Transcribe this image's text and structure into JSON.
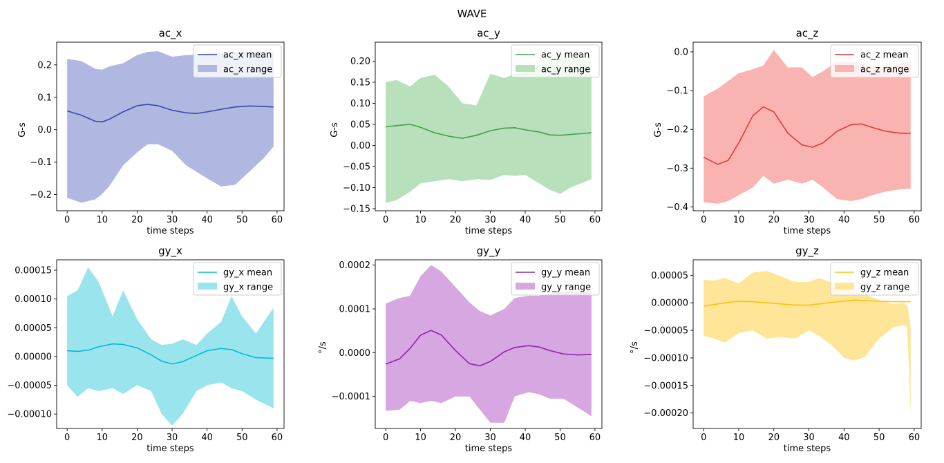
{
  "figure_title": "WAVE",
  "chart_data": [
    {
      "type": "area",
      "title": "ac_x",
      "xlabel": "time steps",
      "ylabel": "G-s",
      "xlim": [
        -3,
        62
      ],
      "ylim": [
        -0.25,
        0.27
      ],
      "xticks": [
        0,
        10,
        20,
        30,
        40,
        50,
        60
      ],
      "xtick_labels": [
        "0",
        "10",
        "20",
        "30",
        "40",
        "50",
        "60"
      ],
      "yticks": [
        -0.2,
        -0.1,
        0.0,
        0.1,
        0.2
      ],
      "ytick_labels": [
        "−0.2",
        "−0.1",
        "0.0",
        "0.1",
        "0.2"
      ],
      "legend": {
        "position": "top-right",
        "mean_label": "ac_x mean",
        "range_label": "ac_x range"
      },
      "line_color": "#3949ab",
      "fill_color": "#b0b7e0",
      "x": [
        0,
        4,
        8,
        10,
        12,
        16,
        20,
        23,
        26,
        30,
        34,
        37,
        40,
        44,
        48,
        52,
        56,
        59
      ],
      "mean": [
        0.058,
        0.045,
        0.026,
        0.024,
        0.032,
        0.055,
        0.074,
        0.078,
        0.074,
        0.06,
        0.052,
        0.05,
        0.055,
        0.063,
        0.07,
        0.073,
        0.072,
        0.07
      ],
      "upper": [
        0.218,
        0.212,
        0.188,
        0.185,
        0.195,
        0.205,
        0.23,
        0.24,
        0.242,
        0.225,
        0.23,
        0.232,
        0.235,
        0.237,
        0.24,
        0.24,
        0.24,
        0.24
      ],
      "lower": [
        -0.21,
        -0.225,
        -0.215,
        -0.198,
        -0.175,
        -0.11,
        -0.07,
        -0.045,
        -0.045,
        -0.065,
        -0.11,
        -0.13,
        -0.15,
        -0.175,
        -0.17,
        -0.13,
        -0.09,
        -0.052
      ]
    },
    {
      "type": "area",
      "title": "ac_y",
      "xlabel": "time steps",
      "ylabel": "G-s",
      "xlim": [
        -3,
        62
      ],
      "ylim": [
        -0.155,
        0.245
      ],
      "xticks": [
        0,
        10,
        20,
        30,
        40,
        50,
        60
      ],
      "xtick_labels": [
        "0",
        "10",
        "20",
        "30",
        "40",
        "50",
        "60"
      ],
      "yticks": [
        -0.15,
        -0.1,
        -0.05,
        0.0,
        0.05,
        0.1,
        0.15,
        0.2
      ],
      "ytick_labels": [
        "−0.15",
        "−0.10",
        "−0.05",
        "0.00",
        "0.05",
        "0.10",
        "0.15",
        "0.20"
      ],
      "legend": {
        "position": "top-right",
        "mean_label": "ac_y mean",
        "range_label": "ac_y range"
      },
      "line_color": "#43a047",
      "fill_color": "#b8e0bb",
      "x": [
        0,
        3,
        7,
        10,
        14,
        18,
        22,
        26,
        30,
        34,
        37,
        40,
        44,
        47,
        50,
        53,
        56,
        59
      ],
      "mean": [
        0.044,
        0.047,
        0.05,
        0.043,
        0.03,
        0.022,
        0.017,
        0.024,
        0.035,
        0.041,
        0.042,
        0.037,
        0.032,
        0.025,
        0.024,
        0.026,
        0.028,
        0.03
      ],
      "upper": [
        0.15,
        0.155,
        0.14,
        0.16,
        0.168,
        0.14,
        0.1,
        0.095,
        0.17,
        0.16,
        0.17,
        0.175,
        0.19,
        0.2,
        0.205,
        0.21,
        0.205,
        0.2
      ],
      "lower": [
        -0.137,
        -0.13,
        -0.11,
        -0.09,
        -0.085,
        -0.08,
        -0.085,
        -0.08,
        -0.082,
        -0.07,
        -0.072,
        -0.07,
        -0.09,
        -0.105,
        -0.115,
        -0.1,
        -0.09,
        -0.08
      ]
    },
    {
      "type": "area",
      "title": "ac_z",
      "xlabel": "time steps",
      "ylabel": "G-s",
      "xlim": [
        -3,
        62
      ],
      "ylim": [
        -0.41,
        0.025
      ],
      "xticks": [
        0,
        10,
        20,
        30,
        40,
        50,
        60
      ],
      "xtick_labels": [
        "0",
        "10",
        "20",
        "30",
        "40",
        "50",
        "60"
      ],
      "yticks": [
        -0.4,
        -0.3,
        -0.2,
        -0.1,
        0.0
      ],
      "ytick_labels": [
        "−0.4",
        "−0.3",
        "−0.2",
        "−0.1",
        "0.0"
      ],
      "legend": {
        "position": "top-right",
        "mean_label": "ac_z mean",
        "range_label": "ac_z range"
      },
      "line_color": "#e53935",
      "fill_color": "#f9b4b1",
      "x": [
        0,
        4,
        7,
        10,
        14,
        17,
        20,
        24,
        28,
        31,
        34,
        38,
        42,
        45,
        48,
        52,
        56,
        59
      ],
      "mean": [
        -0.272,
        -0.29,
        -0.28,
        -0.235,
        -0.165,
        -0.142,
        -0.155,
        -0.21,
        -0.24,
        -0.246,
        -0.235,
        -0.205,
        -0.188,
        -0.186,
        -0.195,
        -0.205,
        -0.21,
        -0.21
      ],
      "upper": [
        -0.115,
        -0.095,
        -0.075,
        -0.055,
        -0.045,
        -0.035,
        0.005,
        -0.04,
        -0.04,
        -0.065,
        -0.05,
        -0.025,
        -0.025,
        -0.03,
        -0.035,
        -0.04,
        -0.03,
        -0.025
      ],
      "lower": [
        -0.388,
        -0.392,
        -0.385,
        -0.37,
        -0.35,
        -0.32,
        -0.34,
        -0.33,
        -0.34,
        -0.33,
        -0.35,
        -0.38,
        -0.385,
        -0.38,
        -0.37,
        -0.36,
        -0.355,
        -0.353
      ]
    },
    {
      "type": "area",
      "title": "gy_x",
      "xlabel": "time steps",
      "ylabel": "",
      "xlim": [
        -3,
        62
      ],
      "ylim": [
        -0.000125,
        0.000168
      ],
      "xticks": [
        0,
        10,
        20,
        30,
        40,
        50,
        60
      ],
      "xtick_labels": [
        "0",
        "10",
        "20",
        "30",
        "40",
        "50",
        "60"
      ],
      "yticks": [
        -0.0001,
        -5e-05,
        0.0,
        5e-05,
        0.0001,
        0.00015
      ],
      "ytick_labels": [
        "−0.00010",
        "−0.00005",
        "0.00000",
        "0.00005",
        "0.00010",
        "0.00015"
      ],
      "legend": {
        "position": "top-right",
        "mean_label": "gy_x mean",
        "range_label": "gy_x range"
      },
      "line_color": "#00bcd4",
      "fill_color": "#9ae4ed",
      "x": [
        0,
        3,
        6,
        9,
        13,
        16,
        20,
        24,
        27,
        30,
        33,
        37,
        40,
        44,
        47,
        50,
        54,
        59
      ],
      "mean": [
        1e-05,
        9e-06,
        1.1e-05,
        1.7e-05,
        2.2e-05,
        2.1e-05,
        1.5e-05,
        3e-06,
        -8e-06,
        -1.3e-05,
        -9e-06,
        2e-06,
        1e-05,
        1.4e-05,
        1.2e-05,
        5e-06,
        -2e-06,
        -3e-06
      ],
      "upper": [
        0.000105,
        0.000115,
        0.000155,
        0.00013,
        7e-05,
        0.000115,
        6.5e-05,
        3e-05,
        2e-05,
        2.2e-05,
        3e-05,
        2e-05,
        4e-05,
        6e-05,
        0.000105,
        7e-05,
        4e-05,
        8.5e-05
      ],
      "lower": [
        -5e-05,
        -7e-05,
        -5.5e-05,
        -6e-05,
        -5.5e-05,
        -6.5e-05,
        -5e-05,
        -6e-05,
        -0.0001,
        -0.00012,
        -0.0001,
        -6e-05,
        -5e-05,
        -4.5e-05,
        -5.5e-05,
        -6e-05,
        -7.5e-05,
        -9e-05
      ]
    },
    {
      "type": "area",
      "title": "gy_y",
      "xlabel": "time steps",
      "ylabel": "°/s",
      "xlim": [
        -3,
        62
      ],
      "ylim": [
        -0.000173,
        0.000212
      ],
      "xticks": [
        0,
        10,
        20,
        30,
        40,
        50,
        60
      ],
      "xtick_labels": [
        "0",
        "10",
        "20",
        "30",
        "40",
        "50",
        "60"
      ],
      "yticks": [
        -0.0001,
        0.0,
        0.0001,
        0.0002
      ],
      "ytick_labels": [
        "−0.0001",
        "0.0000",
        "0.0001",
        "0.0002"
      ],
      "legend": {
        "position": "top-right",
        "mean_label": "gy_y mean",
        "range_label": "gy_y range"
      },
      "line_color": "#8e24aa",
      "fill_color": "#d6a7e0",
      "x": [
        0,
        4,
        7,
        10,
        13,
        16,
        20,
        24,
        27,
        30,
        34,
        37,
        41,
        44,
        47,
        51,
        55,
        59
      ],
      "mean": [
        -2.6e-05,
        -1.4e-05,
        1e-05,
        4e-05,
        5.1e-05,
        4e-05,
        5e-06,
        -2.5e-05,
        -3e-05,
        -2e-05,
        2e-06,
        1.2e-05,
        1.6e-05,
        1.3e-05,
        5e-06,
        -3e-06,
        -5e-06,
        -4e-06
      ],
      "upper": [
        0.000112,
        0.000125,
        0.00013,
        0.000175,
        0.0002,
        0.000185,
        0.00015,
        0.000115,
        9.5e-05,
        8.5e-05,
        0.0001,
        0.000125,
        0.00013,
        0.00013,
        0.000135,
        0.00014,
        0.00014,
        0.00014
      ],
      "lower": [
        -0.000133,
        -0.00013,
        -0.00011,
        -0.000115,
        -0.00011,
        -0.000115,
        -0.0001,
        -0.0001,
        -0.00013,
        -0.00016,
        -0.00016,
        -0.0001,
        -9e-05,
        -9.5e-05,
        -0.000105,
        -0.000105,
        -0.000125,
        -0.000145
      ]
    },
    {
      "type": "area",
      "title": "gy_z",
      "xlabel": "time steps",
      "ylabel": "°/s",
      "xlim": [
        -3,
        62
      ],
      "ylim": [
        -0.000228,
        7.8e-05
      ],
      "xticks": [
        0,
        10,
        20,
        30,
        40,
        50,
        60
      ],
      "xtick_labels": [
        "0",
        "10",
        "20",
        "30",
        "40",
        "50",
        "60"
      ],
      "yticks": [
        -0.0002,
        -0.00015,
        -0.0001,
        -5e-05,
        0.0,
        5e-05
      ],
      "ytick_labels": [
        "−0.00020",
        "−0.00015",
        "−0.00010",
        "−0.00005",
        "0.00000",
        "0.00005"
      ],
      "legend": {
        "position": "top-right",
        "mean_label": "gy_z mean",
        "range_label": "gy_z range"
      },
      "line_color": "#ffc107",
      "fill_color": "#ffe597",
      "x": [
        0,
        3,
        6,
        10,
        14,
        18,
        22,
        26,
        30,
        33,
        37,
        40,
        43,
        46,
        50,
        54,
        57,
        58,
        58.5,
        59
      ],
      "mean": [
        -6e-06,
        -3e-06,
        0.0,
        3e-06,
        2e-06,
        0.0,
        -2e-06,
        -4e-06,
        -4e-06,
        -2e-06,
        1e-06,
        3e-06,
        5e-06,
        4e-06,
        3e-06,
        2e-06,
        2e-06,
        2e-06,
        2e-06,
        2e-06
      ],
      "upper": [
        4.2e-05,
        4e-05,
        4.5e-05,
        3.5e-05,
        5.5e-05,
        5.8e-05,
        4.8e-05,
        3.8e-05,
        3.8e-05,
        4.5e-05,
        3.5e-05,
        2.5e-05,
        2e-05,
        1.5e-05,
        5e-06,
        -2e-06,
        0.0,
        -5e-06,
        -2e-05,
        -4.5e-05
      ],
      "lower": [
        -6e-05,
        -6.5e-05,
        -7.2e-05,
        -5.5e-05,
        -5e-05,
        -6.5e-05,
        -6.2e-05,
        -6.5e-05,
        -5e-05,
        -6e-05,
        -8e-05,
        -0.0001,
        -0.000105,
        -9.8e-05,
        -6.5e-05,
        -4.5e-05,
        -4e-05,
        -4.5e-05,
        -0.00012,
        -0.000205
      ]
    }
  ]
}
